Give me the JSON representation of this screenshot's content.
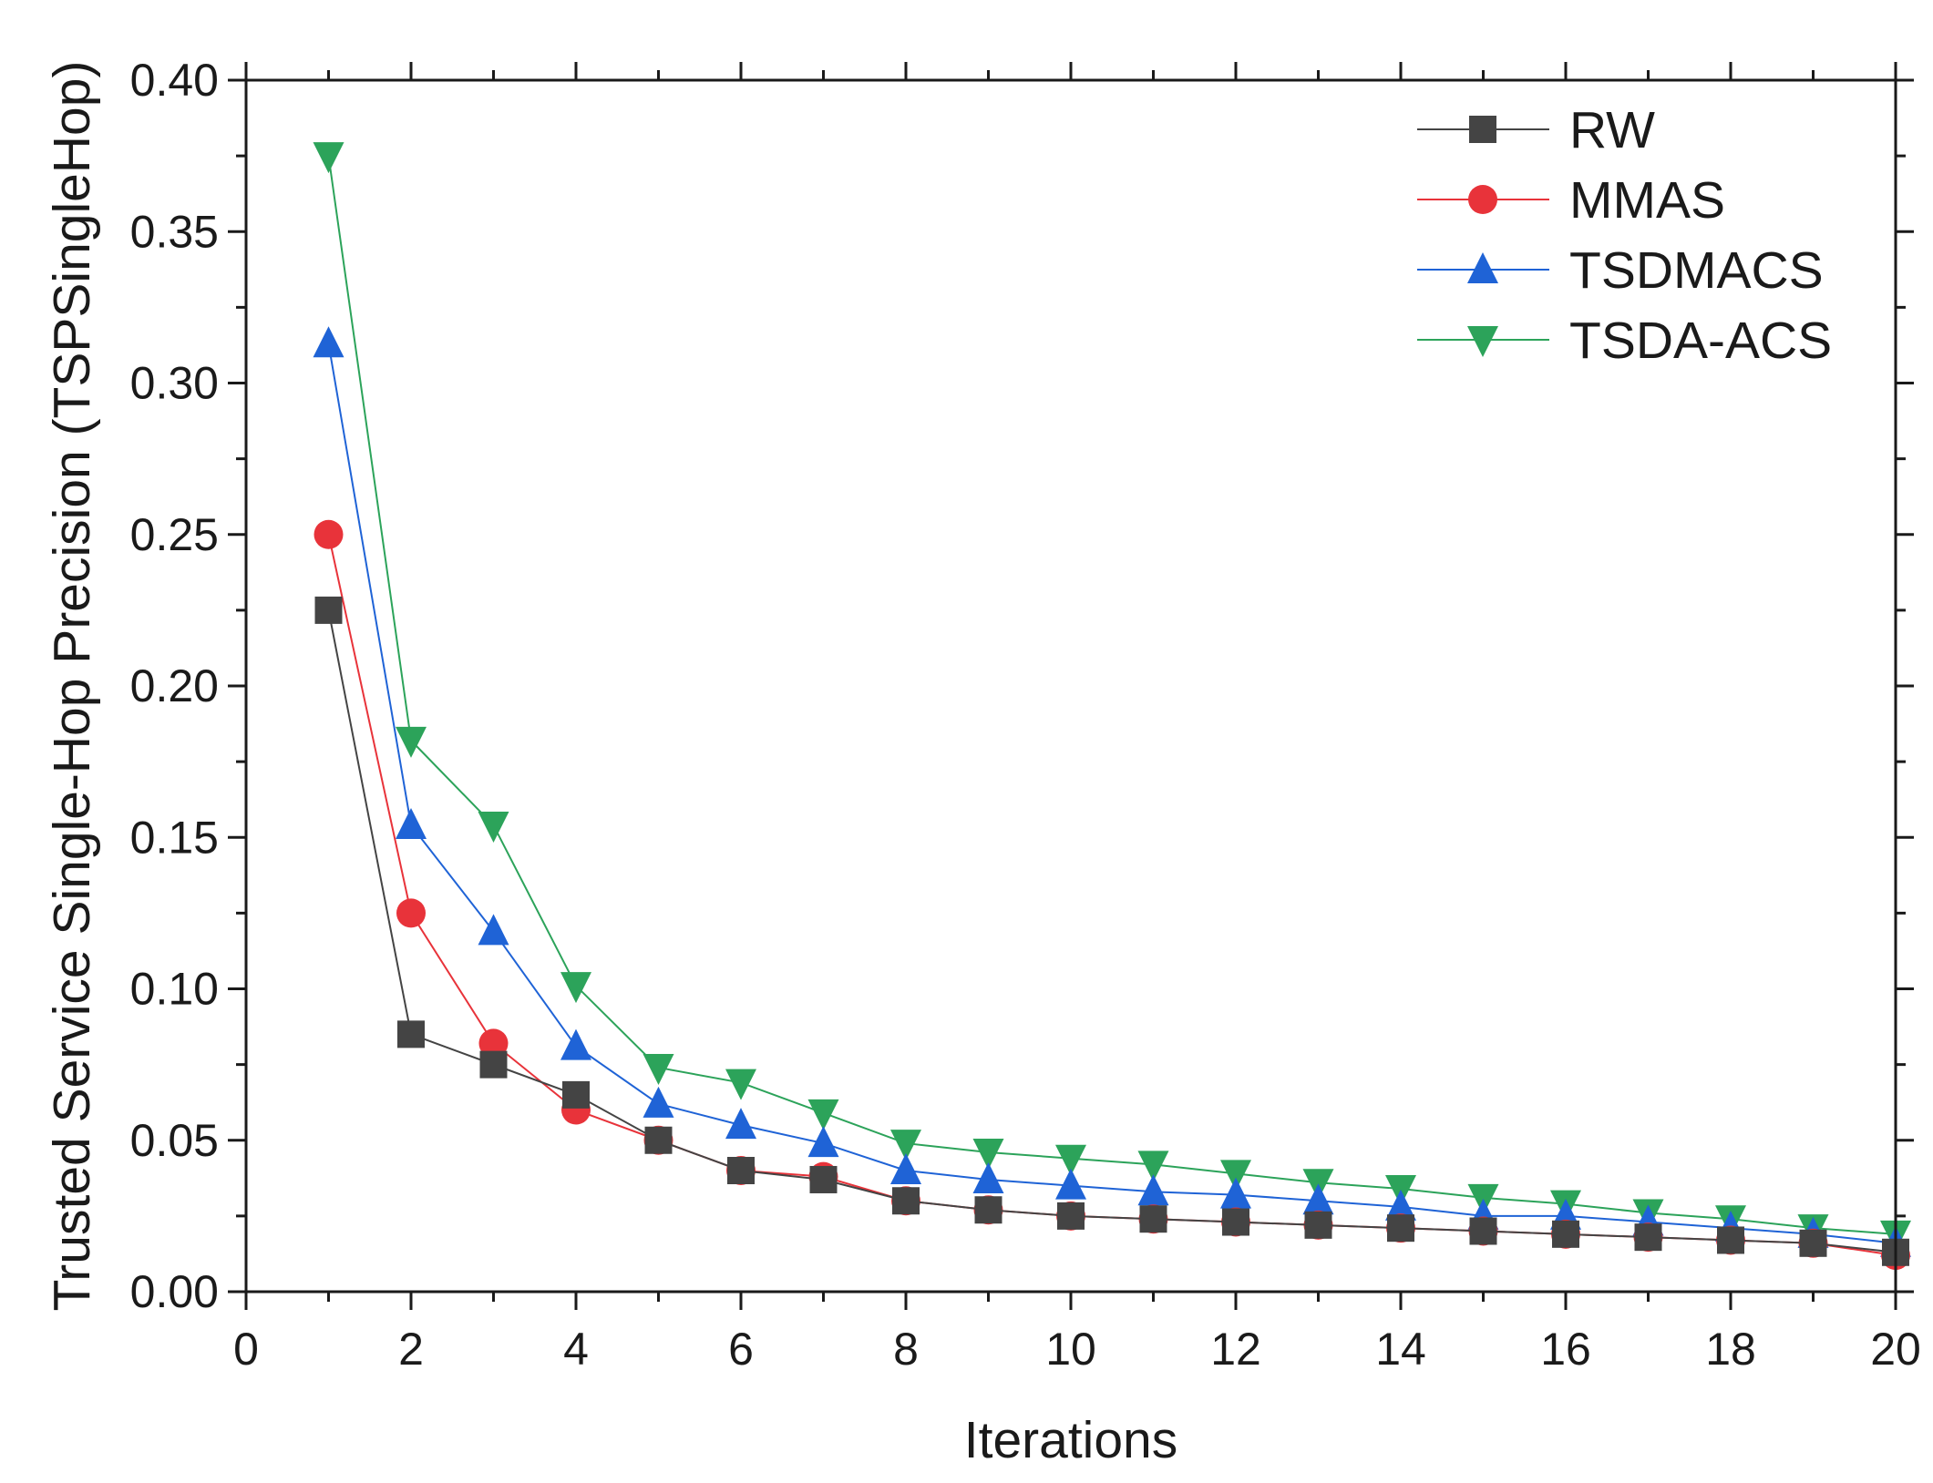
{
  "chart_data": {
    "type": "line",
    "title": "",
    "xlabel": "Iterations",
    "ylabel": "Trusted Service Single-Hop Precision (TSPSingleHop)",
    "xlim": [
      0,
      20
    ],
    "ylim": [
      0,
      0.4
    ],
    "xticks": [
      0,
      2,
      4,
      6,
      8,
      10,
      12,
      14,
      16,
      18,
      20
    ],
    "xtick_labels": [
      "0",
      "2",
      "4",
      "6",
      "8",
      "10",
      "12",
      "14",
      "16",
      "18",
      "20"
    ],
    "yticks": [
      0,
      0.05,
      0.1,
      0.15,
      0.2,
      0.25,
      0.3,
      0.35,
      0.4
    ],
    "ytick_labels": [
      "0.00",
      "0.05",
      "0.10",
      "0.15",
      "0.20",
      "0.25",
      "0.30",
      "0.35",
      "0.40"
    ],
    "grid": false,
    "legend_position": "top-right",
    "x": [
      1,
      2,
      3,
      4,
      5,
      6,
      7,
      8,
      9,
      10,
      11,
      12,
      13,
      14,
      15,
      16,
      17,
      18,
      19,
      20
    ],
    "series": [
      {
        "name": "RW",
        "color": "#444444",
        "marker": "square",
        "values": [
          0.225,
          0.085,
          0.075,
          0.065,
          0.05,
          0.04,
          0.037,
          0.03,
          0.027,
          0.025,
          0.024,
          0.023,
          0.022,
          0.021,
          0.02,
          0.019,
          0.018,
          0.017,
          0.016,
          0.013
        ]
      },
      {
        "name": "MMAS",
        "color": "#e8333a",
        "marker": "circle",
        "values": [
          0.25,
          0.125,
          0.082,
          0.06,
          0.05,
          0.04,
          0.038,
          0.03,
          0.027,
          0.025,
          0.024,
          0.023,
          0.022,
          0.021,
          0.02,
          0.019,
          0.018,
          0.017,
          0.016,
          0.012
        ]
      },
      {
        "name": "TSDMACS",
        "color": "#1f63d6",
        "marker": "triangle-up",
        "values": [
          0.313,
          0.154,
          0.119,
          0.081,
          0.062,
          0.055,
          0.049,
          0.04,
          0.037,
          0.035,
          0.033,
          0.032,
          0.03,
          0.028,
          0.025,
          0.025,
          0.023,
          0.021,
          0.019,
          0.016
        ]
      },
      {
        "name": "TSDA-ACS",
        "color": "#2ca35a",
        "marker": "triangle-down",
        "values": [
          0.375,
          0.182,
          0.154,
          0.101,
          0.074,
          0.069,
          0.059,
          0.049,
          0.046,
          0.044,
          0.042,
          0.039,
          0.036,
          0.034,
          0.031,
          0.029,
          0.026,
          0.024,
          0.021,
          0.019
        ]
      }
    ]
  }
}
